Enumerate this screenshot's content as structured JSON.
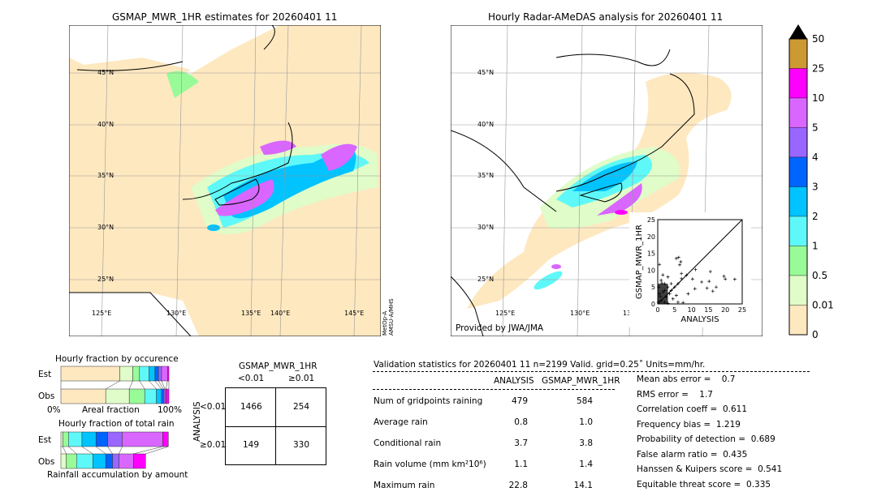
{
  "left_map": {
    "title": "GSMAP_MWR_1HR estimates for 20260401 11",
    "side_label": "MetOp-A\nAMSU-A/MHS",
    "lat_labels": [
      "45°N",
      "40°N",
      "35°N",
      "30°N",
      "25°N"
    ],
    "lon_labels": [
      "125°E",
      "130°E",
      "135°E",
      "140°E",
      "145°E"
    ]
  },
  "right_map": {
    "title": "Hourly Radar-AMeDAS analysis for 20260401 11",
    "credit": "Provided by JWA/JMA",
    "lat_labels": [
      "45°N",
      "40°N",
      "35°N",
      "30°N",
      "25°N"
    ],
    "lon_labels": [
      "125°E",
      "130°E",
      "135°E"
    ]
  },
  "colorbar": {
    "labels": [
      "50",
      "25",
      "10",
      "5",
      "4",
      "3",
      "2",
      "1",
      "0.5",
      "0.01",
      "0"
    ],
    "colors": [
      "#cc9933",
      "#ff00ff",
      "#d966ff",
      "#9966ff",
      "#0064ff",
      "#00c3ff",
      "#5ff8f8",
      "#98fb98",
      "#e0fcc8",
      "#fee8c0"
    ],
    "extend_color": "#000000"
  },
  "chart_data": [
    {
      "type": "scatter",
      "xlabel": "ANALYSIS",
      "ylabel": "GSMAP_MWR_1HR",
      "xlim": [
        0,
        25
      ],
      "ylim": [
        0,
        25
      ],
      "xticks": [
        "0",
        "5",
        "10",
        "15",
        "20",
        "25"
      ],
      "yticks": [
        "0",
        "5",
        "10",
        "15",
        "20",
        "25"
      ],
      "points": [
        [
          0.5,
          11.7
        ],
        [
          5.5,
          13.5
        ],
        [
          6.2,
          13.8
        ],
        [
          6.8,
          12.5
        ],
        [
          6.5,
          11.6
        ],
        [
          11.2,
          10.2
        ],
        [
          15.6,
          9.6
        ],
        [
          19.6,
          8.2
        ],
        [
          20,
          7.4
        ],
        [
          22.8,
          7.3
        ],
        [
          15.2,
          6.7
        ],
        [
          13,
          6.5
        ],
        [
          10.3,
          7.4
        ],
        [
          17.3,
          5.0
        ],
        [
          14.6,
          4.7
        ],
        [
          16.3,
          3.8
        ],
        [
          11,
          4.5
        ],
        [
          9,
          3.0
        ],
        [
          7.5,
          0.4
        ],
        [
          8.5,
          8.5
        ],
        [
          7,
          9
        ],
        [
          4,
          6
        ],
        [
          3,
          5
        ],
        [
          2,
          4
        ],
        [
          1.5,
          8.6
        ],
        [
          1,
          7
        ],
        [
          2.5,
          2
        ],
        [
          3.5,
          3
        ],
        [
          4.5,
          1.5
        ],
        [
          5.5,
          2.5
        ],
        [
          6,
          0.5
        ],
        [
          1,
          1
        ],
        [
          0.5,
          3
        ],
        [
          0.3,
          5
        ],
        [
          2,
          0.5
        ],
        [
          3,
          0.2
        ],
        [
          1.2,
          6.2
        ],
        [
          0.8,
          2.2
        ],
        [
          4,
          4
        ],
        [
          5,
          5
        ],
        [
          6,
          6
        ],
        [
          7,
          7.5
        ],
        [
          3,
          8
        ],
        [
          2,
          6
        ],
        [
          0.2,
          0.5
        ],
        [
          1.5,
          3.5
        ]
      ]
    },
    {
      "type": "bar",
      "title": "Hourly fraction by occurence",
      "xlabel": "Areal fraction",
      "x_tick_labels": [
        "0%",
        "100%"
      ],
      "categories": [
        "Est",
        "Obs"
      ],
      "series": [
        {
          "category": "Est",
          "fractions": [
            0.545,
            0.12,
            0.063,
            0.088,
            0.055,
            0.033,
            0.028,
            0.055,
            0.013
          ]
        },
        {
          "category": "Obs",
          "fractions": [
            0.415,
            0.218,
            0.143,
            0.108,
            0.048,
            0.018,
            0.013,
            0.01,
            0.027
          ]
        }
      ]
    },
    {
      "type": "bar",
      "title": "Hourly fraction of total rain",
      "xlabel": "Rainfall accumulation by amount",
      "categories": [
        "Est",
        "Obs"
      ],
      "series": [
        {
          "category": "Est",
          "fractions": [
            0.0175,
            0.0525,
            0.125,
            0.13,
            0.1075,
            0.135,
            0.375,
            0.0525
          ]
        },
        {
          "category": "Obs",
          "fractions": [
            0.05,
            0.095,
            0.15,
            0.12,
            0.063,
            0.06,
            0.133,
            0.113
          ]
        }
      ]
    }
  ],
  "contingency": {
    "col_title": "GSMAP_MWR_1HR",
    "col_labels": [
      "<0.01",
      "≥0.01"
    ],
    "row_title": "ANALYSIS",
    "row_labels": [
      "<0.01",
      "≥0.01"
    ],
    "cells": [
      [
        "1466",
        "254"
      ],
      [
        "149",
        "330"
      ]
    ]
  },
  "stats": {
    "header": "Validation statistics for 20260401 11  n=2199 Valid. grid=0.25˚ Units=mm/hr.",
    "col_headers": [
      "ANALYSIS",
      "GSMAP_MWR_1HR"
    ],
    "rows": [
      {
        "label": "Num of gridpoints raining",
        "a": "479",
        "b": "584"
      },
      {
        "label": "Average rain",
        "a": "0.8",
        "b": "1.0"
      },
      {
        "label": "Conditional rain",
        "a": "3.7",
        "b": "3.8"
      },
      {
        "label": "Rain volume (mm km²10⁶)",
        "a": "1.1",
        "b": "1.4"
      },
      {
        "label": "Maximum rain",
        "a": "22.8",
        "b": "14.1"
      }
    ],
    "scores": [
      "Mean abs error =    0.7",
      "RMS error =    1.7",
      "Correlation coeff =  0.611",
      "Frequency bias =  1.219",
      "Probability of detection =  0.689",
      "False alarm ratio =  0.435",
      "Hanssen & Kuipers score =  0.541",
      "Equitable threat score =  0.335"
    ]
  }
}
